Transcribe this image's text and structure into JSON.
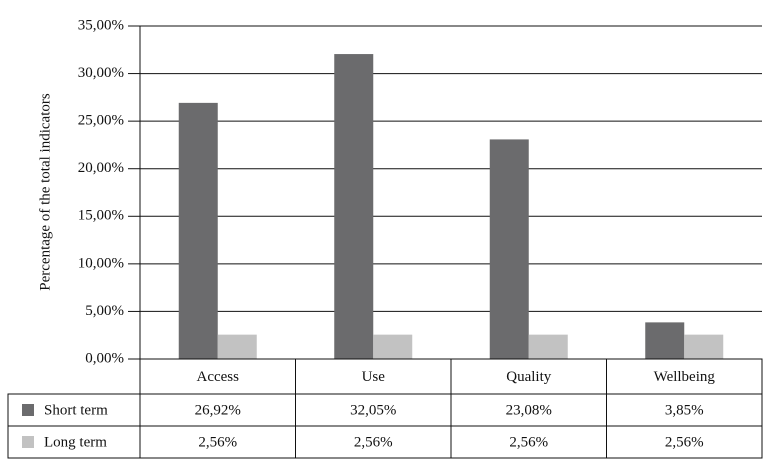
{
  "chart_data": {
    "type": "bar",
    "y_label": "Percentage of the total indicators",
    "categories": [
      "Access",
      "Use",
      "Quality",
      "Wellbeing"
    ],
    "series": [
      {
        "name": "Short term",
        "color": "#6b6b6d",
        "values": [
          26.92,
          32.05,
          23.08,
          3.85
        ],
        "value_labels": [
          "26,92%",
          "32,05%",
          "23,08%",
          "3,85%"
        ]
      },
      {
        "name": "Long term",
        "color": "#c2c2c2",
        "values": [
          2.56,
          2.56,
          2.56,
          2.56
        ],
        "value_labels": [
          "2,56%",
          "2,56%",
          "2,56%",
          "2,56%"
        ]
      }
    ],
    "ylim": [
      0,
      35
    ],
    "yticks": [
      {
        "value": 0,
        "label": "0,00%"
      },
      {
        "value": 5,
        "label": "5,00%"
      },
      {
        "value": 10,
        "label": "10,00%"
      },
      {
        "value": 15,
        "label": "15,00%"
      },
      {
        "value": 20,
        "label": "20,00%"
      },
      {
        "value": 25,
        "label": "25,00%"
      },
      {
        "value": 30,
        "label": "30,00%"
      },
      {
        "value": 35,
        "label": "35,00%"
      }
    ],
    "grid": true
  }
}
